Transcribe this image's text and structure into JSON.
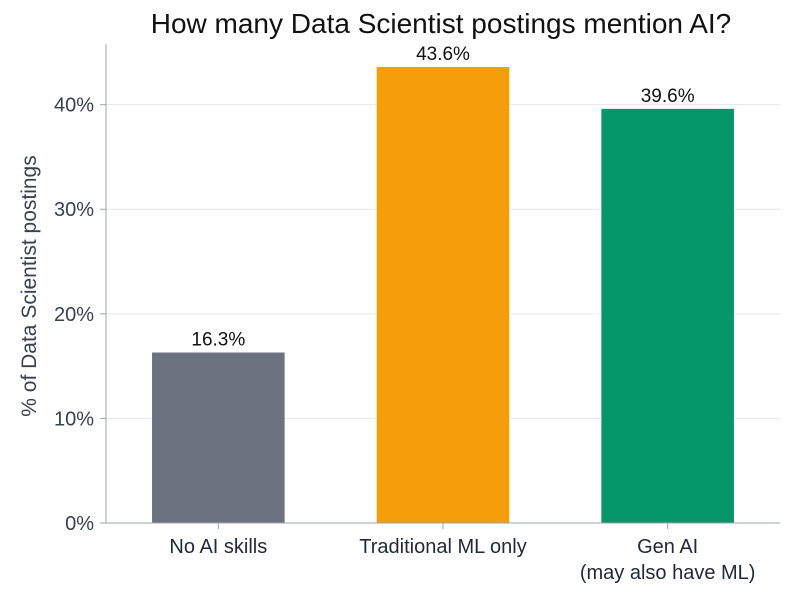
{
  "chart_data": {
    "type": "bar",
    "title": "How many Data Scientist postings mention AI?",
    "xlabel": "",
    "ylabel": "% of Data Scientist postings",
    "categories": [
      [
        "No AI skills"
      ],
      [
        "Traditional ML only"
      ],
      [
        "Gen AI",
        "(may also have ML)"
      ]
    ],
    "values": [
      16.3,
      43.6,
      39.6
    ],
    "data_labels": [
      "16.3%",
      "43.6%",
      "39.6%"
    ],
    "colors": [
      "#6b7280",
      "#f59e0b",
      "#059669"
    ],
    "yticks": [
      0,
      10,
      20,
      30,
      40
    ],
    "ytick_labels": [
      "0%",
      "10%",
      "20%",
      "30%",
      "40%"
    ],
    "ylim": [
      0,
      45.8
    ],
    "grid": true,
    "legend": "none"
  }
}
